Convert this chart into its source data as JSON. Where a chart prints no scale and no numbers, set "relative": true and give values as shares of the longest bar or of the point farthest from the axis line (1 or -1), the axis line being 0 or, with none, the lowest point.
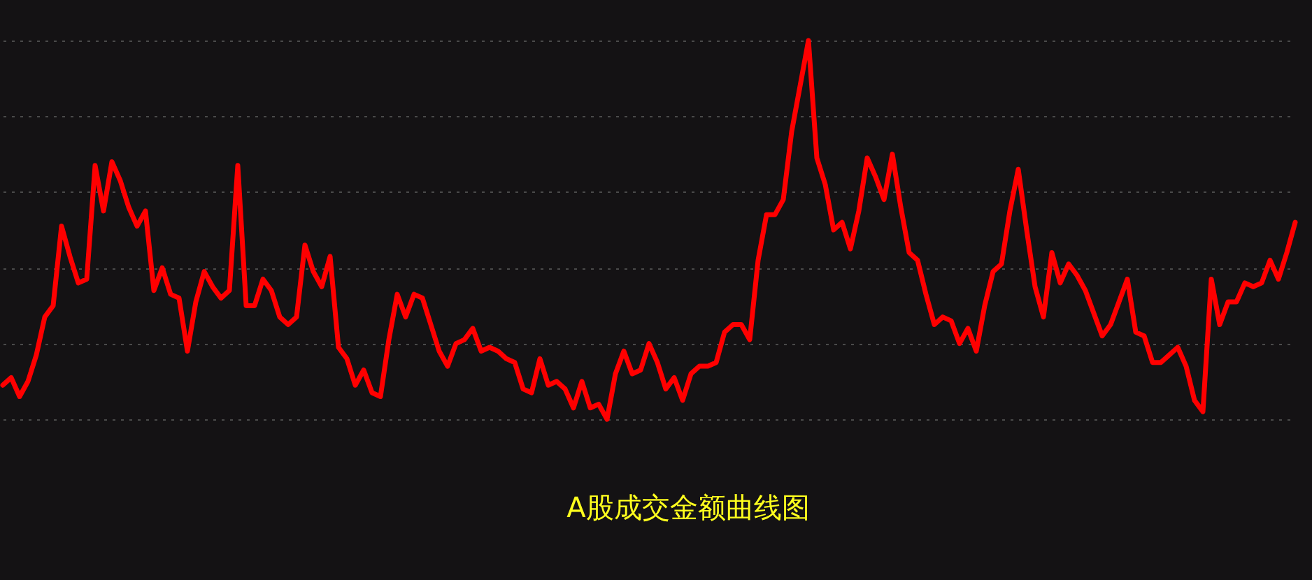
{
  "chart_data": {
    "type": "line",
    "title": "A股成交金额曲线图",
    "relative": true,
    "grid": "y",
    "categories": [
      null,
      null,
      null,
      null,
      null,
      null,
      null,
      null,
      null,
      null,
      null,
      null,
      null,
      null,
      null,
      null,
      null,
      null,
      null,
      null,
      null,
      null,
      null,
      null,
      null,
      null,
      null,
      null,
      null,
      null,
      null,
      null,
      null,
      null,
      null,
      null,
      null,
      null,
      null,
      null,
      null,
      null,
      null,
      null,
      null,
      null,
      null,
      null,
      null,
      null,
      null,
      null,
      null,
      null,
      null,
      null,
      null,
      null,
      null,
      null,
      null,
      null,
      null,
      null,
      null,
      null,
      null,
      null,
      null,
      null,
      null,
      null,
      null,
      null,
      null,
      null,
      null,
      null,
      null,
      null,
      null,
      null,
      null,
      null,
      null,
      null,
      null,
      null,
      null,
      null,
      null,
      null,
      null,
      null,
      null,
      null,
      null,
      null,
      null,
      null,
      null,
      null,
      null,
      null,
      null,
      null,
      null,
      null,
      null,
      null,
      null,
      null,
      null,
      null,
      null,
      null,
      null,
      null,
      null,
      null,
      null,
      null,
      null,
      null,
      null,
      null,
      null,
      null,
      null,
      null,
      null,
      null,
      null,
      null,
      null,
      null,
      null,
      null,
      null,
      null,
      null,
      null,
      null,
      null,
      null,
      null,
      null,
      null,
      null,
      null,
      null,
      null,
      null,
      null,
      null
    ],
    "series": [
      {
        "color": "#ff0000",
        "values": [
          0.09,
          0.11,
          0.06,
          0.1,
          0.17,
          0.27,
          0.3,
          0.51,
          0.43,
          0.36,
          0.37,
          0.67,
          0.55,
          0.68,
          0.63,
          0.56,
          0.51,
          0.55,
          0.34,
          0.4,
          0.33,
          0.32,
          0.18,
          0.31,
          0.39,
          0.35,
          0.32,
          0.34,
          0.67,
          0.3,
          0.3,
          0.37,
          0.34,
          0.27,
          0.25,
          0.27,
          0.46,
          0.39,
          0.35,
          0.43,
          0.19,
          0.16,
          0.09,
          0.13,
          0.07,
          0.06,
          0.21,
          0.33,
          0.27,
          0.33,
          0.32,
          0.25,
          0.18,
          0.14,
          0.2,
          0.21,
          0.24,
          0.18,
          0.19,
          0.18,
          0.16,
          0.15,
          0.08,
          0.07,
          0.16,
          0.09,
          0.1,
          0.08,
          0.03,
          0.1,
          0.03,
          0.04,
          0,
          0.12,
          0.18,
          0.12,
          0.13,
          0.2,
          0.15,
          0.08,
          0.11,
          0.05,
          0.12,
          0.14,
          0.14,
          0.15,
          0.23,
          0.25,
          0.25,
          0.21,
          0.42,
          0.54,
          0.54,
          0.58,
          0.76,
          0.88,
          1,
          0.69,
          0.62,
          0.5,
          0.52,
          0.45,
          0.55,
          0.69,
          0.64,
          0.58,
          0.7,
          0.56,
          0.44,
          0.42,
          0.33,
          0.25,
          0.27,
          0.26,
          0.2,
          0.24,
          0.18,
          0.3,
          0.39,
          0.41,
          0.55,
          0.66,
          0.5,
          0.35,
          0.27,
          0.44,
          0.36,
          0.41,
          0.38,
          0.34,
          0.28,
          0.22,
          0.25,
          0.31,
          0.37,
          0.23,
          0.22,
          0.15,
          0.15,
          0.17,
          0.19,
          0.14,
          0.05,
          0.02,
          0.37,
          0.25,
          0.31,
          0.31,
          0.36,
          0.35,
          0.36,
          0.42,
          0.37,
          0.44,
          0.52
        ]
      }
    ]
  }
}
